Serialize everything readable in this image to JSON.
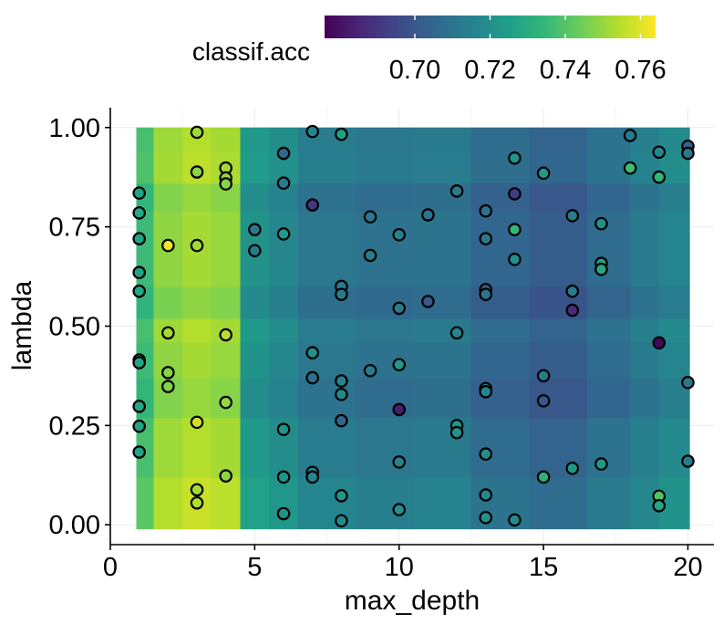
{
  "chart_data": {
    "type": "heatmap",
    "xlabel": "max_depth",
    "ylabel": "lambda",
    "xlim": [
      0,
      20.9
    ],
    "ylim": [
      -0.05,
      1.05
    ],
    "x_ticks": [
      0,
      5,
      10,
      15,
      20
    ],
    "x_tick_labels": [
      "0",
      "5",
      "10",
      "15",
      "20"
    ],
    "y_ticks": [
      0,
      0.25,
      0.5,
      0.75,
      1.0
    ],
    "y_tick_labels": [
      "0.00",
      "0.25",
      "0.50",
      "0.75",
      "1.00"
    ],
    "colorbar": {
      "title": "classif.acc",
      "min": 0.676,
      "max": 0.764,
      "ticks": [
        0.7,
        0.72,
        0.74,
        0.76
      ],
      "tick_labels": [
        "0.70",
        "0.72",
        "0.74",
        "0.76"
      ],
      "palette": [
        "#440154",
        "#482878",
        "#3e4989",
        "#31688e",
        "#26828e",
        "#1f9e89",
        "#35b779",
        "#6ece58",
        "#b5de2b",
        "#fde725"
      ]
    },
    "heatmap_columns": [
      {
        "x0": 0.9,
        "x1": 1.5,
        "value": 0.737
      },
      {
        "x0": 1.5,
        "x1": 2.5,
        "value": 0.75
      },
      {
        "x0": 2.5,
        "x1": 3.5,
        "value": 0.753
      },
      {
        "x0": 3.5,
        "x1": 4.5,
        "value": 0.751
      },
      {
        "x0": 4.5,
        "x1": 5.5,
        "value": 0.722
      },
      {
        "x0": 5.5,
        "x1": 6.5,
        "value": 0.718
      },
      {
        "x0": 6.5,
        "x1": 8.5,
        "value": 0.712
      },
      {
        "x0": 8.5,
        "x1": 10.5,
        "value": 0.71
      },
      {
        "x0": 10.5,
        "x1": 12.5,
        "value": 0.711
      },
      {
        "x0": 12.5,
        "x1": 14.5,
        "value": 0.706
      },
      {
        "x0": 14.5,
        "x1": 16.5,
        "value": 0.703
      },
      {
        "x0": 16.5,
        "x1": 18.0,
        "value": 0.708
      },
      {
        "x0": 18.0,
        "x1": 19.0,
        "value": 0.713
      },
      {
        "x0": 19.0,
        "x1": 20.05,
        "value": 0.717
      }
    ],
    "heatmap_rows": [
      {
        "y0": -0.01,
        "y1": 0.12,
        "offset": 0.004
      },
      {
        "y0": 0.12,
        "y1": 0.27,
        "offset": 0.001
      },
      {
        "y0": 0.27,
        "y1": 0.37,
        "offset": -0.003
      },
      {
        "y0": 0.37,
        "y1": 0.46,
        "offset": -0.001
      },
      {
        "y0": 0.46,
        "y1": 0.52,
        "offset": 0.001
      },
      {
        "y0": 0.52,
        "y1": 0.6,
        "offset": -0.004
      },
      {
        "y0": 0.6,
        "y1": 0.7,
        "offset": -0.001
      },
      {
        "y0": 0.7,
        "y1": 0.79,
        "offset": -0.001
      },
      {
        "y0": 0.79,
        "y1": 0.86,
        "offset": -0.003
      },
      {
        "y0": 0.86,
        "y1": 0.94,
        "offset": 0.002
      },
      {
        "y0": 0.94,
        "y1": 1.0,
        "offset": 0.001
      }
    ],
    "points": [
      {
        "x": 1,
        "y": 0.835,
        "value": 0.726
      },
      {
        "x": 1,
        "y": 0.785,
        "value": 0.728
      },
      {
        "x": 1,
        "y": 0.72,
        "value": 0.727
      },
      {
        "x": 1,
        "y": 0.635,
        "value": 0.726
      },
      {
        "x": 1,
        "y": 0.588,
        "value": 0.728
      },
      {
        "x": 1,
        "y": 0.415,
        "value": 0.725
      },
      {
        "x": 1,
        "y": 0.408,
        "value": 0.727
      },
      {
        "x": 1,
        "y": 0.298,
        "value": 0.728
      },
      {
        "x": 1,
        "y": 0.248,
        "value": 0.727
      },
      {
        "x": 1,
        "y": 0.183,
        "value": 0.726
      },
      {
        "x": 2,
        "y": 0.703,
        "value": 0.762
      },
      {
        "x": 2,
        "y": 0.483,
        "value": 0.752
      },
      {
        "x": 2,
        "y": 0.383,
        "value": 0.748
      },
      {
        "x": 2,
        "y": 0.348,
        "value": 0.747
      },
      {
        "x": 3,
        "y": 0.988,
        "value": 0.751
      },
      {
        "x": 3,
        "y": 0.888,
        "value": 0.749
      },
      {
        "x": 3,
        "y": 0.703,
        "value": 0.752
      },
      {
        "x": 3,
        "y": 0.258,
        "value": 0.758
      },
      {
        "x": 3,
        "y": 0.088,
        "value": 0.752
      },
      {
        "x": 3,
        "y": 0.055,
        "value": 0.754
      },
      {
        "x": 4,
        "y": 0.898,
        "value": 0.752
      },
      {
        "x": 4,
        "y": 0.873,
        "value": 0.75
      },
      {
        "x": 4,
        "y": 0.858,
        "value": 0.748
      },
      {
        "x": 4,
        "y": 0.478,
        "value": 0.755
      },
      {
        "x": 4,
        "y": 0.308,
        "value": 0.75
      },
      {
        "x": 4,
        "y": 0.123,
        "value": 0.749
      },
      {
        "x": 5,
        "y": 0.743,
        "value": 0.712
      },
      {
        "x": 5,
        "y": 0.69,
        "value": 0.712
      },
      {
        "x": 6,
        "y": 0.935,
        "value": 0.705
      },
      {
        "x": 6,
        "y": 0.86,
        "value": 0.713
      },
      {
        "x": 6,
        "y": 0.732,
        "value": 0.724
      },
      {
        "x": 6,
        "y": 0.24,
        "value": 0.721
      },
      {
        "x": 6,
        "y": 0.12,
        "value": 0.722
      },
      {
        "x": 6,
        "y": 0.028,
        "value": 0.721
      },
      {
        "x": 7,
        "y": 0.99,
        "value": 0.716
      },
      {
        "x": 7,
        "y": 0.805,
        "value": 0.69
      },
      {
        "x": 7,
        "y": 0.433,
        "value": 0.72
      },
      {
        "x": 7,
        "y": 0.37,
        "value": 0.708
      },
      {
        "x": 7,
        "y": 0.132,
        "value": 0.715
      },
      {
        "x": 7,
        "y": 0.12,
        "value": 0.716
      },
      {
        "x": 8,
        "y": 0.983,
        "value": 0.726
      },
      {
        "x": 8,
        "y": 0.6,
        "value": 0.713
      },
      {
        "x": 8,
        "y": 0.58,
        "value": 0.712
      },
      {
        "x": 8,
        "y": 0.362,
        "value": 0.715
      },
      {
        "x": 8,
        "y": 0.328,
        "value": 0.718
      },
      {
        "x": 8,
        "y": 0.262,
        "value": 0.705
      },
      {
        "x": 8,
        "y": 0.073,
        "value": 0.722
      },
      {
        "x": 8,
        "y": 0.01,
        "value": 0.718
      },
      {
        "x": 9,
        "y": 0.775,
        "value": 0.711
      },
      {
        "x": 9,
        "y": 0.678,
        "value": 0.713
      },
      {
        "x": 9,
        "y": 0.388,
        "value": 0.713
      },
      {
        "x": 10,
        "y": 0.73,
        "value": 0.715
      },
      {
        "x": 10,
        "y": 0.545,
        "value": 0.712
      },
      {
        "x": 10,
        "y": 0.403,
        "value": 0.723
      },
      {
        "x": 10,
        "y": 0.29,
        "value": 0.683
      },
      {
        "x": 10,
        "y": 0.158,
        "value": 0.717
      },
      {
        "x": 10,
        "y": 0.038,
        "value": 0.72
      },
      {
        "x": 11,
        "y": 0.78,
        "value": 0.71
      },
      {
        "x": 11,
        "y": 0.562,
        "value": 0.7
      },
      {
        "x": 12,
        "y": 0.84,
        "value": 0.712
      },
      {
        "x": 12,
        "y": 0.483,
        "value": 0.716
      },
      {
        "x": 12,
        "y": 0.25,
        "value": 0.722
      },
      {
        "x": 12,
        "y": 0.232,
        "value": 0.72
      },
      {
        "x": 13,
        "y": 0.79,
        "value": 0.709
      },
      {
        "x": 13,
        "y": 0.72,
        "value": 0.712
      },
      {
        "x": 13,
        "y": 0.592,
        "value": 0.704
      },
      {
        "x": 13,
        "y": 0.58,
        "value": 0.71
      },
      {
        "x": 13,
        "y": 0.343,
        "value": 0.714
      },
      {
        "x": 13,
        "y": 0.335,
        "value": 0.716
      },
      {
        "x": 13,
        "y": 0.178,
        "value": 0.719
      },
      {
        "x": 13,
        "y": 0.075,
        "value": 0.718
      },
      {
        "x": 13,
        "y": 0.018,
        "value": 0.72
      },
      {
        "x": 14,
        "y": 0.923,
        "value": 0.721
      },
      {
        "x": 14,
        "y": 0.833,
        "value": 0.692
      },
      {
        "x": 14,
        "y": 0.743,
        "value": 0.734
      },
      {
        "x": 14,
        "y": 0.668,
        "value": 0.72
      },
      {
        "x": 14,
        "y": 0.012,
        "value": 0.718
      },
      {
        "x": 15,
        "y": 0.885,
        "value": 0.724
      },
      {
        "x": 15,
        "y": 0.375,
        "value": 0.712
      },
      {
        "x": 15,
        "y": 0.312,
        "value": 0.7
      },
      {
        "x": 15,
        "y": 0.12,
        "value": 0.732
      },
      {
        "x": 16,
        "y": 0.778,
        "value": 0.713
      },
      {
        "x": 16,
        "y": 0.588,
        "value": 0.712
      },
      {
        "x": 16,
        "y": 0.54,
        "value": 0.687
      },
      {
        "x": 16,
        "y": 0.142,
        "value": 0.722
      },
      {
        "x": 17,
        "y": 0.758,
        "value": 0.72
      },
      {
        "x": 17,
        "y": 0.658,
        "value": 0.726
      },
      {
        "x": 17,
        "y": 0.643,
        "value": 0.728
      },
      {
        "x": 17,
        "y": 0.153,
        "value": 0.723
      },
      {
        "x": 18,
        "y": 0.98,
        "value": 0.712
      },
      {
        "x": 18,
        "y": 0.898,
        "value": 0.737
      },
      {
        "x": 19,
        "y": 0.938,
        "value": 0.717
      },
      {
        "x": 19,
        "y": 0.875,
        "value": 0.734
      },
      {
        "x": 19,
        "y": 0.458,
        "value": 0.678
      },
      {
        "x": 19,
        "y": 0.072,
        "value": 0.74
      },
      {
        "x": 19,
        "y": 0.048,
        "value": 0.728
      },
      {
        "x": 20,
        "y": 0.953,
        "value": 0.703
      },
      {
        "x": 20,
        "y": 0.935,
        "value": 0.711
      },
      {
        "x": 20,
        "y": 0.358,
        "value": 0.712
      },
      {
        "x": 20,
        "y": 0.16,
        "value": 0.713
      }
    ]
  }
}
